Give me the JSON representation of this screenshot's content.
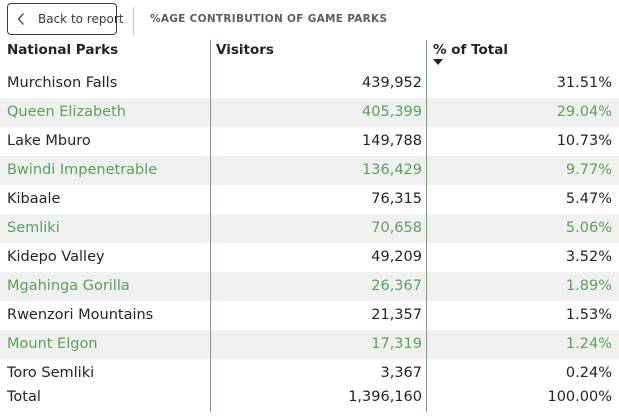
{
  "back_button": {
    "label": "Back to report",
    "icon": "chevron-left-icon"
  },
  "page_title": "%AGE CONTRIBUTION OF GAME PARKS",
  "table": {
    "headers": {
      "park": "National Parks",
      "visitors": "Visitors",
      "pct": "% of Total"
    },
    "sort": {
      "column": "pct",
      "direction": "descending"
    },
    "rows": [
      {
        "park": "Murchison Falls",
        "visitors": "439,952",
        "pct": "31.51%"
      },
      {
        "park": "Queen Elizabeth",
        "visitors": "405,399",
        "pct": "29.04%"
      },
      {
        "park": "Lake Mburo",
        "visitors": "149,788",
        "pct": "10.73%"
      },
      {
        "park": "Bwindi Impenetrable",
        "visitors": "136,429",
        "pct": "9.77%"
      },
      {
        "park": "Kibaale",
        "visitors": "76,315",
        "pct": "5.47%"
      },
      {
        "park": "Semliki",
        "visitors": "70,658",
        "pct": "5.06%"
      },
      {
        "park": "Kidepo Valley",
        "visitors": "49,209",
        "pct": "3.52%"
      },
      {
        "park": "Mgahinga Gorilla",
        "visitors": "26,367",
        "pct": "1.89%"
      },
      {
        "park": "Rwenzori Mountains",
        "visitors": "21,357",
        "pct": "1.53%"
      },
      {
        "park": "Mount Elgon",
        "visitors": "17,319",
        "pct": "1.24%"
      },
      {
        "park": "Toro Semliki",
        "visitors": "3,367",
        "pct": "0.24%"
      }
    ],
    "total": {
      "label": "Total",
      "visitors": "1,396,160",
      "pct": "100.00%"
    }
  },
  "colors": {
    "accent_green": "#5aa05a",
    "stripe": "#f0f0f0",
    "divider": "#6ba56b"
  }
}
